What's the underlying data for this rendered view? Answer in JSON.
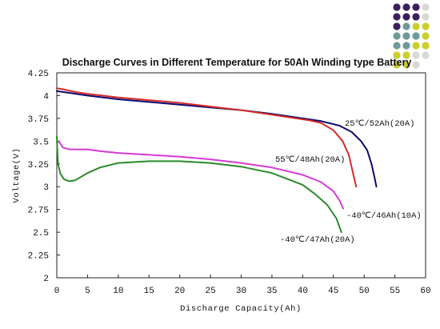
{
  "chart_data": {
    "type": "line",
    "title": "Discharge Curves in Different Temperature for 50Ah Winding type Battery",
    "xlabel": "Discharge Capacity(Ah)",
    "ylabel": "Voltage(V)",
    "xlim": [
      0,
      60
    ],
    "ylim": [
      2,
      4.25
    ],
    "xticks": [
      0,
      5,
      10,
      15,
      20,
      25,
      30,
      35,
      40,
      45,
      50,
      55,
      60
    ],
    "yticks": [
      2,
      2.25,
      2.5,
      2.75,
      3,
      3.25,
      3.5,
      3.75,
      4,
      4.25
    ],
    "ytick_labels": [
      "2",
      "2.25",
      "2.5",
      "2.75",
      "3",
      "3.25",
      "3.5",
      "3.75",
      "4",
      "4.25"
    ],
    "grid": false,
    "series": [
      {
        "name": "25℃/52Ah(20A)",
        "color": "#0a0a6e",
        "points": [
          [
            0,
            4.05
          ],
          [
            2,
            4.03
          ],
          [
            5,
            4.0
          ],
          [
            10,
            3.96
          ],
          [
            15,
            3.93
          ],
          [
            20,
            3.9
          ],
          [
            25,
            3.87
          ],
          [
            30,
            3.84
          ],
          [
            35,
            3.8
          ],
          [
            40,
            3.75
          ],
          [
            43,
            3.72
          ],
          [
            46,
            3.67
          ],
          [
            48,
            3.6
          ],
          [
            49.5,
            3.5
          ],
          [
            50.5,
            3.4
          ],
          [
            51.2,
            3.25
          ],
          [
            51.7,
            3.1
          ],
          [
            52,
            3.0
          ]
        ]
      },
      {
        "name": "55℃/48Ah(20A)",
        "color": "#d42a2a",
        "points": [
          [
            0,
            4.08
          ],
          [
            1,
            4.07
          ],
          [
            3,
            4.04
          ],
          [
            5,
            4.02
          ],
          [
            10,
            3.98
          ],
          [
            15,
            3.95
          ],
          [
            20,
            3.92
          ],
          [
            25,
            3.88
          ],
          [
            30,
            3.84
          ],
          [
            35,
            3.79
          ],
          [
            38,
            3.76
          ],
          [
            41,
            3.73
          ],
          [
            43,
            3.7
          ],
          [
            45,
            3.62
          ],
          [
            46.5,
            3.5
          ],
          [
            47.5,
            3.35
          ],
          [
            48.2,
            3.15
          ],
          [
            48.7,
            3.0
          ]
        ]
      },
      {
        "name": "-40℃/46Ah(10A)",
        "color": "#d63ad6",
        "points": [
          [
            0,
            3.48
          ],
          [
            0.3,
            3.5
          ],
          [
            1,
            3.43
          ],
          [
            2,
            3.41
          ],
          [
            5,
            3.41
          ],
          [
            7,
            3.39
          ],
          [
            10,
            3.37
          ],
          [
            15,
            3.35
          ],
          [
            20,
            3.33
          ],
          [
            25,
            3.3
          ],
          [
            30,
            3.26
          ],
          [
            35,
            3.21
          ],
          [
            40,
            3.13
          ],
          [
            43,
            3.05
          ],
          [
            45,
            2.95
          ],
          [
            46,
            2.85
          ],
          [
            46.6,
            2.76
          ]
        ]
      },
      {
        "name": "-40℃/47Ah(20A)",
        "color": "#2a8a2a",
        "points": [
          [
            0,
            3.55
          ],
          [
            0.2,
            3.25
          ],
          [
            0.6,
            3.14
          ],
          [
            1.2,
            3.08
          ],
          [
            2,
            3.06
          ],
          [
            3,
            3.07
          ],
          [
            4,
            3.11
          ],
          [
            5,
            3.15
          ],
          [
            7,
            3.21
          ],
          [
            10,
            3.26
          ],
          [
            15,
            3.28
          ],
          [
            20,
            3.28
          ],
          [
            25,
            3.26
          ],
          [
            30,
            3.22
          ],
          [
            35,
            3.15
          ],
          [
            40,
            3.02
          ],
          [
            42,
            2.92
          ],
          [
            44,
            2.8
          ],
          [
            45.5,
            2.65
          ],
          [
            46.3,
            2.5
          ]
        ]
      }
    ],
    "annotations": [
      "25℃/52Ah(20A)",
      "55℃/48Ah(20A)",
      "-40℃/46Ah(10A)",
      "-40℃/47Ah(20A)"
    ],
    "logo_dot_colors": [
      "#3b1f5e",
      "#6e9a9a",
      "#c9cf2c",
      "#d8d8d8"
    ]
  }
}
